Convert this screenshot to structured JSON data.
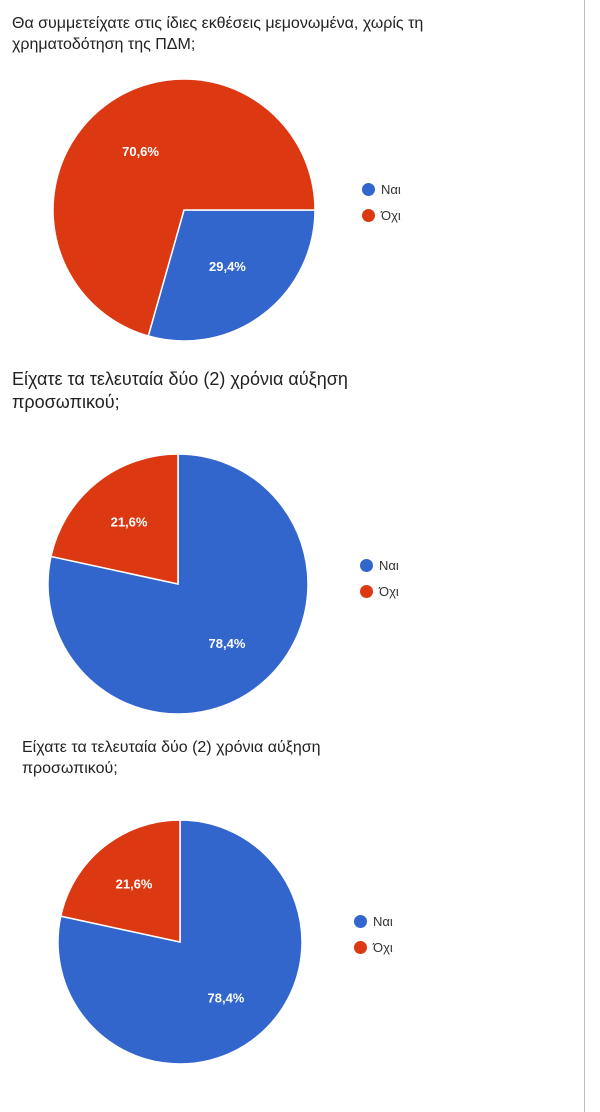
{
  "colors": {
    "yes": "#3366cc",
    "no": "#dc3912"
  },
  "chart_data": [
    {
      "type": "pie",
      "title": "Θα συμμετείχατε στις ίδιες εκθέσεις μεμονωμένα, χωρίς τη χρηματοδότηση της ΠΔΜ;",
      "slices": [
        {
          "name": "Ναι",
          "value": 29.4,
          "label": "29,4%"
        },
        {
          "name": "Όχι",
          "value": 70.6,
          "label": "70,6%"
        }
      ],
      "legend": [
        "Ναι",
        "Όχι"
      ],
      "legend_position": "right"
    },
    {
      "type": "pie",
      "title": "Είχατε τα τελευταία δύο (2) χρόνια αύξηση προσωπικού;",
      "slices": [
        {
          "name": "Ναι",
          "value": 78.4,
          "label": "78,4%"
        },
        {
          "name": "Όχι",
          "value": 21.6,
          "label": "21,6%"
        }
      ],
      "legend": [
        "Ναι",
        "Όχι"
      ],
      "legend_position": "right"
    },
    {
      "type": "pie",
      "title": "Είχατε τα τελευταία δύο (2) χρόνια αύξηση προσωπικού;",
      "slices": [
        {
          "name": "Ναι",
          "value": 78.4,
          "label": "78,4%"
        },
        {
          "name": "Όχι",
          "value": 21.6,
          "label": "21,6%"
        }
      ],
      "legend": [
        "Ναι",
        "Όχι"
      ],
      "legend_position": "right"
    }
  ]
}
